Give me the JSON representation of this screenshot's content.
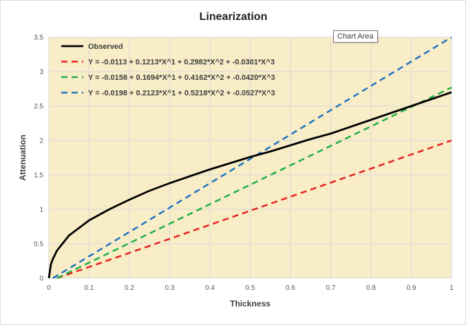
{
  "tooltip": "Chart Area",
  "chart_data": {
    "type": "line",
    "title": "Linearization",
    "xlabel": "Thickness",
    "ylabel": "Attenuation",
    "xlim": [
      0,
      1
    ],
    "ylim": [
      0,
      3.5
    ],
    "xticks": [
      0,
      0.1,
      0.2,
      0.3,
      0.4,
      0.5,
      0.6,
      0.7,
      0.8,
      0.9,
      1
    ],
    "yticks": [
      0,
      0.5,
      1,
      1.5,
      2,
      2.5,
      3,
      3.5
    ],
    "xtick_labels": [
      "0",
      "0.1",
      "0.2",
      "0.3",
      "0.4",
      "0.5",
      "0.6",
      "0.7",
      "0.8",
      "0.9",
      "1"
    ],
    "ytick_labels": [
      "0",
      "0.5",
      "1",
      "1.5",
      "2",
      "2.5",
      "3",
      "3.5"
    ],
    "grid": true,
    "legend_position": "top-left",
    "plot_background": "#f8edc6",
    "series": [
      {
        "name": "Observed",
        "color": "#000000",
        "style": "solid",
        "x": [
          0,
          0.005,
          0.01,
          0.02,
          0.05,
          0.1,
          0.15,
          0.2,
          0.25,
          0.3,
          0.35,
          0.4,
          0.45,
          0.5,
          0.55,
          0.6,
          0.65,
          0.7,
          0.75,
          0.8,
          0.85,
          0.9,
          0.95,
          1.0
        ],
        "y": [
          0,
          0.2,
          0.28,
          0.4,
          0.62,
          0.84,
          1.0,
          1.14,
          1.27,
          1.38,
          1.48,
          1.58,
          1.67,
          1.76,
          1.84,
          1.93,
          2.02,
          2.1,
          2.2,
          2.3,
          2.4,
          2.5,
          2.6,
          2.7
        ]
      },
      {
        "name": "Y = -0.0113 + 0.1213*X^1 + 0.2982*X^2 + -0.0301*X^3",
        "color": "#e8201e",
        "style": "dashed",
        "x": [
          0.02,
          1.0
        ],
        "y": [
          0,
          2.0
        ]
      },
      {
        "name": "Y = -0.0158 + 0.1694*X^1 + 0.4162*X^2 + -0.0420*X^3",
        "color": "#1fae46",
        "style": "dashed",
        "x": [
          0.02,
          1.0
        ],
        "y": [
          0,
          2.77
        ]
      },
      {
        "name": "Y = -0.0198 + 0.2123*X^1 + 0.5218*X^2 + -0.0527*X^3",
        "color": "#1f72bf",
        "style": "dashed",
        "x": [
          0.01,
          1.0
        ],
        "y": [
          0,
          3.5
        ]
      }
    ]
  }
}
